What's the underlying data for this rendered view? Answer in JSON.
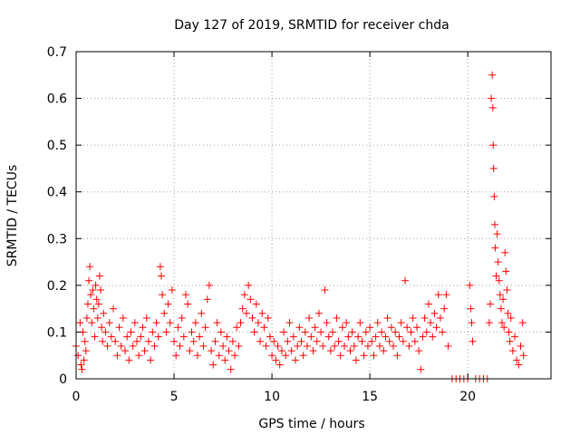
{
  "chart_data": {
    "type": "scatter",
    "title": "Day 127 of 2019, SRMTID for receiver chda",
    "xlabel": "GPS time / hours",
    "ylabel": "SRMTID / TECUs",
    "xlim": [
      0,
      24.25
    ],
    "ylim": [
      0,
      0.7
    ],
    "xticks": [
      0,
      5,
      10,
      15,
      20
    ],
    "yticks": [
      0,
      0.1,
      0.2,
      0.3,
      0.4,
      0.5,
      0.6,
      0.7
    ],
    "xtick_labels": [
      "0",
      "5",
      "10",
      "15",
      "20"
    ],
    "ytick_labels": [
      "0",
      "0.1",
      "0.2",
      "0.3",
      "0.4",
      "0.5",
      "0.6",
      "0.7"
    ],
    "grid": true,
    "marker": "+",
    "color": "#ff0000",
    "series": [
      {
        "name": "SRMTID",
        "points": [
          [
            0.0,
            0.07
          ],
          [
            0.1,
            0.05
          ],
          [
            0.2,
            0.12
          ],
          [
            0.25,
            0.03
          ],
          [
            0.3,
            0.02
          ],
          [
            0.35,
            0.1
          ],
          [
            0.4,
            0.04
          ],
          [
            0.45,
            0.08
          ],
          [
            0.5,
            0.06
          ],
          [
            0.55,
            0.13
          ],
          [
            0.6,
            0.16
          ],
          [
            0.65,
            0.21
          ],
          [
            0.7,
            0.24
          ],
          [
            0.75,
            0.18
          ],
          [
            0.8,
            0.12
          ],
          [
            0.85,
            0.19
          ],
          [
            0.9,
            0.15
          ],
          [
            0.95,
            0.09
          ],
          [
            1.0,
            0.2
          ],
          [
            1.05,
            0.17
          ],
          [
            1.1,
            0.13
          ],
          [
            1.15,
            0.16
          ],
          [
            1.2,
            0.22
          ],
          [
            1.25,
            0.19
          ],
          [
            1.3,
            0.11
          ],
          [
            1.35,
            0.08
          ],
          [
            1.4,
            0.14
          ],
          [
            1.5,
            0.1
          ],
          [
            1.6,
            0.07
          ],
          [
            1.7,
            0.12
          ],
          [
            1.8,
            0.09
          ],
          [
            1.9,
            0.15
          ],
          [
            2.0,
            0.08
          ],
          [
            2.1,
            0.05
          ],
          [
            2.2,
            0.11
          ],
          [
            2.3,
            0.07
          ],
          [
            2.4,
            0.13
          ],
          [
            2.5,
            0.06
          ],
          [
            2.6,
            0.09
          ],
          [
            2.7,
            0.04
          ],
          [
            2.8,
            0.1
          ],
          [
            2.9,
            0.07
          ],
          [
            3.0,
            0.12
          ],
          [
            3.1,
            0.08
          ],
          [
            3.2,
            0.05
          ],
          [
            3.3,
            0.09
          ],
          [
            3.4,
            0.11
          ],
          [
            3.5,
            0.06
          ],
          [
            3.6,
            0.13
          ],
          [
            3.7,
            0.08
          ],
          [
            3.8,
            0.04
          ],
          [
            3.9,
            0.1
          ],
          [
            4.0,
            0.07
          ],
          [
            4.1,
            0.12
          ],
          [
            4.2,
            0.09
          ],
          [
            4.3,
            0.24
          ],
          [
            4.35,
            0.22
          ],
          [
            4.4,
            0.18
          ],
          [
            4.5,
            0.14
          ],
          [
            4.6,
            0.1
          ],
          [
            4.7,
            0.16
          ],
          [
            4.8,
            0.12
          ],
          [
            4.9,
            0.19
          ],
          [
            5.0,
            0.08
          ],
          [
            5.1,
            0.05
          ],
          [
            5.2,
            0.11
          ],
          [
            5.3,
            0.07
          ],
          [
            5.4,
            0.13
          ],
          [
            5.5,
            0.09
          ],
          [
            5.6,
            0.18
          ],
          [
            5.7,
            0.16
          ],
          [
            5.8,
            0.06
          ],
          [
            5.9,
            0.1
          ],
          [
            6.0,
            0.08
          ],
          [
            6.1,
            0.12
          ],
          [
            6.2,
            0.05
          ],
          [
            6.3,
            0.09
          ],
          [
            6.4,
            0.14
          ],
          [
            6.5,
            0.07
          ],
          [
            6.6,
            0.11
          ],
          [
            6.7,
            0.17
          ],
          [
            6.8,
            0.2
          ],
          [
            6.9,
            0.06
          ],
          [
            7.0,
            0.03
          ],
          [
            7.1,
            0.08
          ],
          [
            7.2,
            0.12
          ],
          [
            7.3,
            0.05
          ],
          [
            7.4,
            0.1
          ],
          [
            7.5,
            0.07
          ],
          [
            7.6,
            0.04
          ],
          [
            7.7,
            0.09
          ],
          [
            7.8,
            0.06
          ],
          [
            7.9,
            0.02
          ],
          [
            8.0,
            0.08
          ],
          [
            8.1,
            0.05
          ],
          [
            8.2,
            0.11
          ],
          [
            8.3,
            0.07
          ],
          [
            8.4,
            0.12
          ],
          [
            8.5,
            0.15
          ],
          [
            8.6,
            0.18
          ],
          [
            8.7,
            0.14
          ],
          [
            8.8,
            0.2
          ],
          [
            8.9,
            0.17
          ],
          [
            9.0,
            0.13
          ],
          [
            9.1,
            0.1
          ],
          [
            9.2,
            0.16
          ],
          [
            9.3,
            0.12
          ],
          [
            9.4,
            0.08
          ],
          [
            9.5,
            0.14
          ],
          [
            9.6,
            0.11
          ],
          [
            9.7,
            0.07
          ],
          [
            9.8,
            0.13
          ],
          [
            9.9,
            0.09
          ],
          [
            10.0,
            0.05
          ],
          [
            10.1,
            0.08
          ],
          [
            10.2,
            0.04
          ],
          [
            10.3,
            0.07
          ],
          [
            10.4,
            0.03
          ],
          [
            10.5,
            0.06
          ],
          [
            10.6,
            0.1
          ],
          [
            10.7,
            0.05
          ],
          [
            10.8,
            0.08
          ],
          [
            10.9,
            0.12
          ],
          [
            11.0,
            0.06
          ],
          [
            11.1,
            0.09
          ],
          [
            11.2,
            0.04
          ],
          [
            11.3,
            0.07
          ],
          [
            11.4,
            0.11
          ],
          [
            11.5,
            0.08
          ],
          [
            11.6,
            0.05
          ],
          [
            11.7,
            0.1
          ],
          [
            11.8,
            0.07
          ],
          [
            11.9,
            0.13
          ],
          [
            12.0,
            0.09
          ],
          [
            12.1,
            0.06
          ],
          [
            12.2,
            0.11
          ],
          [
            12.3,
            0.08
          ],
          [
            12.4,
            0.14
          ],
          [
            12.5,
            0.1
          ],
          [
            12.6,
            0.07
          ],
          [
            12.7,
            0.19
          ],
          [
            12.8,
            0.12
          ],
          [
            12.9,
            0.09
          ],
          [
            13.0,
            0.06
          ],
          [
            13.1,
            0.1
          ],
          [
            13.2,
            0.07
          ],
          [
            13.3,
            0.13
          ],
          [
            13.4,
            0.08
          ],
          [
            13.5,
            0.05
          ],
          [
            13.6,
            0.11
          ],
          [
            13.7,
            0.07
          ],
          [
            13.8,
            0.12
          ],
          [
            13.9,
            0.09
          ],
          [
            14.0,
            0.06
          ],
          [
            14.1,
            0.1
          ],
          [
            14.2,
            0.07
          ],
          [
            14.3,
            0.04
          ],
          [
            14.4,
            0.09
          ],
          [
            14.5,
            0.12
          ],
          [
            14.6,
            0.08
          ],
          [
            14.7,
            0.05
          ],
          [
            14.8,
            0.1
          ],
          [
            14.9,
            0.07
          ],
          [
            15.0,
            0.11
          ],
          [
            15.1,
            0.08
          ],
          [
            15.2,
            0.05
          ],
          [
            15.3,
            0.09
          ],
          [
            15.4,
            0.12
          ],
          [
            15.5,
            0.07
          ],
          [
            15.6,
            0.1
          ],
          [
            15.7,
            0.06
          ],
          [
            15.8,
            0.09
          ],
          [
            15.9,
            0.13
          ],
          [
            16.0,
            0.08
          ],
          [
            16.1,
            0.11
          ],
          [
            16.2,
            0.07
          ],
          [
            16.3,
            0.1
          ],
          [
            16.4,
            0.05
          ],
          [
            16.5,
            0.09
          ],
          [
            16.6,
            0.12
          ],
          [
            16.7,
            0.08
          ],
          [
            16.8,
            0.21
          ],
          [
            16.9,
            0.11
          ],
          [
            17.0,
            0.07
          ],
          [
            17.1,
            0.1
          ],
          [
            17.2,
            0.13
          ],
          [
            17.3,
            0.08
          ],
          [
            17.4,
            0.11
          ],
          [
            17.5,
            0.06
          ],
          [
            17.6,
            0.02
          ],
          [
            17.7,
            0.09
          ],
          [
            17.8,
            0.13
          ],
          [
            17.9,
            0.1
          ],
          [
            18.0,
            0.16
          ],
          [
            18.1,
            0.12
          ],
          [
            18.2,
            0.09
          ],
          [
            18.3,
            0.14
          ],
          [
            18.4,
            0.11
          ],
          [
            18.5,
            0.18
          ],
          [
            18.6,
            0.13
          ],
          [
            18.7,
            0.1
          ],
          [
            18.8,
            0.15
          ],
          [
            18.9,
            0.18
          ],
          [
            19.0,
            0.07
          ],
          [
            19.2,
            0.0
          ],
          [
            19.4,
            0.0
          ],
          [
            19.6,
            0.0
          ],
          [
            19.8,
            0.0
          ],
          [
            20.0,
            0.0
          ],
          [
            20.1,
            0.2
          ],
          [
            20.15,
            0.15
          ],
          [
            20.2,
            0.12
          ],
          [
            20.25,
            0.08
          ],
          [
            20.4,
            0.0
          ],
          [
            20.6,
            0.0
          ],
          [
            20.8,
            0.0
          ],
          [
            21.0,
            0.0
          ],
          [
            21.1,
            0.12
          ],
          [
            21.15,
            0.16
          ],
          [
            21.2,
            0.6
          ],
          [
            21.25,
            0.65
          ],
          [
            21.28,
            0.58
          ],
          [
            21.3,
            0.5
          ],
          [
            21.32,
            0.45
          ],
          [
            21.35,
            0.39
          ],
          [
            21.38,
            0.33
          ],
          [
            21.4,
            0.28
          ],
          [
            21.45,
            0.22
          ],
          [
            21.5,
            0.31
          ],
          [
            21.55,
            0.25
          ],
          [
            21.6,
            0.21
          ],
          [
            21.65,
            0.18
          ],
          [
            21.7,
            0.15
          ],
          [
            21.75,
            0.12
          ],
          [
            21.8,
            0.17
          ],
          [
            21.85,
            0.11
          ],
          [
            21.9,
            0.27
          ],
          [
            21.95,
            0.23
          ],
          [
            22.0,
            0.19
          ],
          [
            22.05,
            0.14
          ],
          [
            22.1,
            0.1
          ],
          [
            22.15,
            0.08
          ],
          [
            22.2,
            0.13
          ],
          [
            22.3,
            0.06
          ],
          [
            22.4,
            0.09
          ],
          [
            22.5,
            0.04
          ],
          [
            22.6,
            0.03
          ],
          [
            22.7,
            0.07
          ],
          [
            22.8,
            0.12
          ],
          [
            22.85,
            0.05
          ]
        ]
      }
    ]
  }
}
